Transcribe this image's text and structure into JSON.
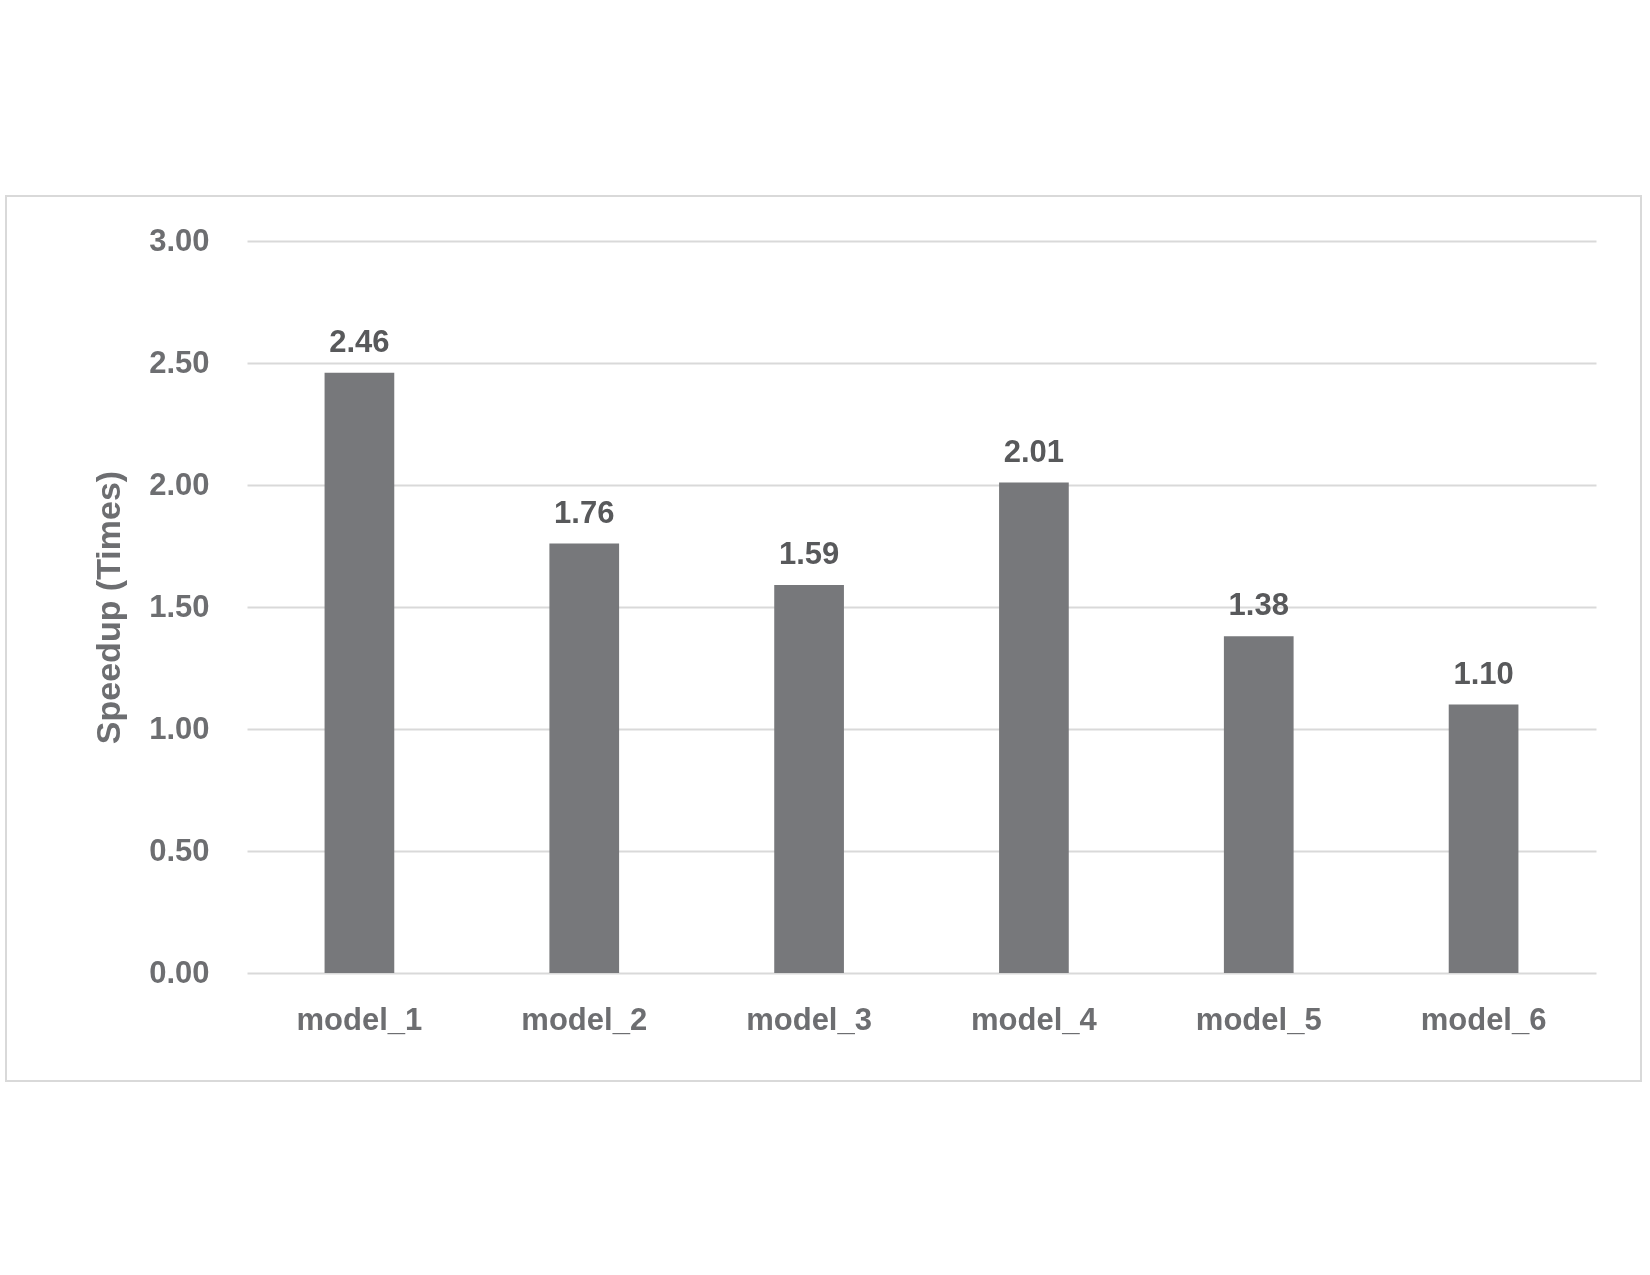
{
  "chart_data": {
    "type": "bar",
    "ylabel": "Speedup (Times)",
    "categories": [
      "model_1",
      "model_2",
      "model_3",
      "model_4",
      "model_5",
      "model_6"
    ],
    "values": [
      2.46,
      1.76,
      1.59,
      2.01,
      1.38,
      1.1
    ],
    "value_labels": [
      "2.46",
      "1.76",
      "1.59",
      "2.01",
      "1.38",
      "1.10"
    ],
    "color": "#77787b",
    "ylim": [
      0,
      3
    ],
    "yticks": [
      {
        "value": 0,
        "label": "0.00"
      },
      {
        "value": 0.5,
        "label": "0.50"
      },
      {
        "value": 1,
        "label": "1.00"
      },
      {
        "value": 1.5,
        "label": "1.50"
      },
      {
        "value": 2,
        "label": "2.00"
      },
      {
        "value": 2.5,
        "label": "2.50"
      },
      {
        "value": 3,
        "label": "3.00"
      }
    ],
    "grid": "y"
  }
}
